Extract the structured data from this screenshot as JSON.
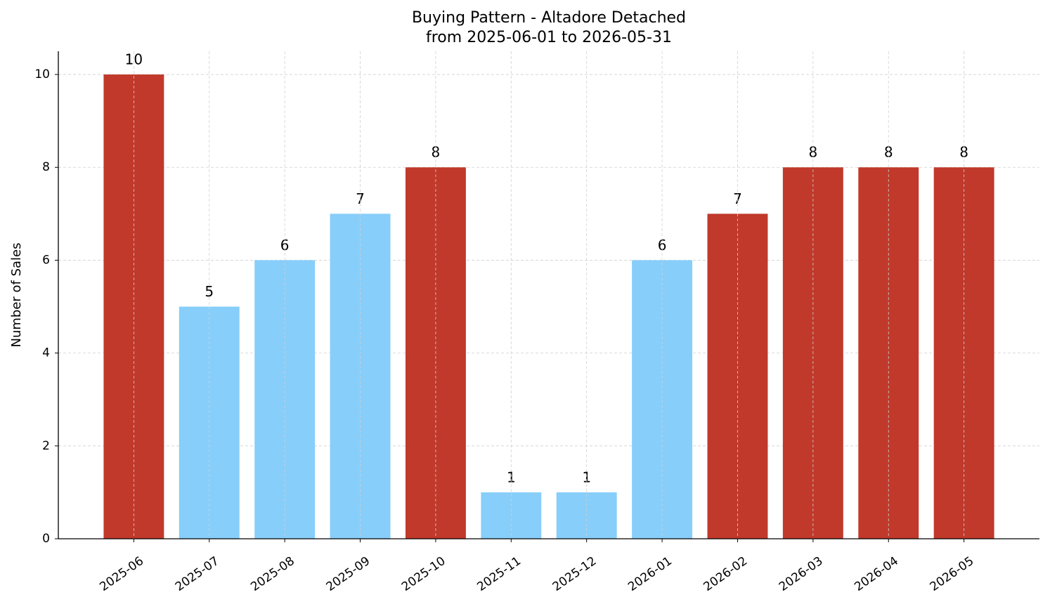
{
  "chart_data": {
    "type": "bar",
    "title": "Buying Pattern - Altadore Detached",
    "subtitle": "from 2025-06-01 to 2026-05-31",
    "y_label": "Number of Sales",
    "categories": [
      "2025-06",
      "2025-07",
      "2025-08",
      "2025-09",
      "2025-10",
      "2025-11",
      "2025-12",
      "2026-01",
      "2026-02",
      "2026-03",
      "2026-04",
      "2026-05"
    ],
    "values": [
      10,
      5,
      6,
      7,
      8,
      1,
      1,
      6,
      7,
      8,
      8,
      8
    ],
    "colors": [
      "#c0392b",
      "#87cefa",
      "#87cefa",
      "#87cefa",
      "#c0392b",
      "#87cefa",
      "#87cefa",
      "#87cefa",
      "#c0392b",
      "#c0392b",
      "#c0392b",
      "#c0392b"
    ],
    "ylim": [
      0,
      10.5
    ],
    "yticks": [
      0,
      2,
      4,
      6,
      8,
      10
    ],
    "grid": true
  }
}
